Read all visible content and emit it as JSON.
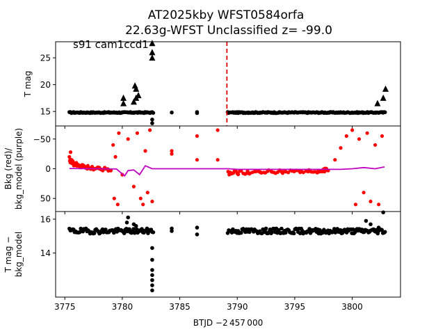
{
  "figure": {
    "title_line1": "AT2025kby  WFST0584orfa",
    "title_line2": "22.63g-WFST Unclassified z= -99.0",
    "annotation": "s91 cam1ccd1",
    "xlabel": "BTJD −2 457 000"
  },
  "colors": {
    "points": "#000000",
    "bkg": "#ff0000",
    "model": "#c000c0",
    "marker_line": "#dd0000"
  },
  "chart_data": [
    {
      "name": "top",
      "type": "scatter",
      "ylabel": "T mag",
      "xlim": [
        3774.2,
        3804.2
      ],
      "ylim": [
        28,
        12.3
      ],
      "yticks": [
        15,
        20,
        25
      ],
      "inverted_y": true,
      "vline_x": 3789.1,
      "series": [
        {
          "kind": "dots",
          "points": [
            [
              3775.5,
              14.8
            ],
            [
              3776,
              14.8
            ],
            [
              3776.5,
              14.8
            ],
            [
              3777,
              14.8
            ],
            [
              3777.5,
              14.8
            ],
            [
              3778,
              14.8
            ],
            [
              3778.5,
              14.8
            ],
            [
              3779,
              14.8
            ],
            [
              3779.5,
              14.8
            ],
            [
              3780,
              14.8
            ],
            [
              3780.5,
              14.8
            ],
            [
              3781,
              14.8
            ],
            [
              3781.5,
              14.8
            ],
            [
              3782,
              14.8
            ],
            [
              3782.5,
              14.8
            ],
            [
              3782.6,
              14.8
            ],
            [
              3782.6,
              13.5
            ],
            [
              3782.6,
              12.8
            ],
            [
              3784.3,
              14.8
            ],
            [
              3786.5,
              14.7
            ],
            [
              3786.5,
              14.9
            ],
            [
              3789.2,
              14.8
            ],
            [
              3790,
              14.8
            ],
            [
              3791,
              14.8
            ],
            [
              3792,
              14.8
            ],
            [
              3793,
              14.8
            ],
            [
              3794,
              14.8
            ],
            [
              3795,
              14.8
            ],
            [
              3796,
              14.8
            ],
            [
              3797,
              14.8
            ],
            [
              3798,
              14.8
            ],
            [
              3799,
              14.8
            ],
            [
              3800,
              14.8
            ],
            [
              3801,
              14.8
            ],
            [
              3802,
              14.8
            ],
            [
              3802.7,
              14.8
            ]
          ]
        },
        {
          "kind": "triangles",
          "points": [
            [
              3780.1,
              16.5
            ],
            [
              3780.1,
              17.5
            ],
            [
              3781,
              16.8
            ],
            [
              3781.2,
              17.5
            ],
            [
              3781.4,
              18
            ],
            [
              3781.2,
              19.2
            ],
            [
              3781.1,
              19.8
            ],
            [
              3782.6,
              25.0
            ],
            [
              3782.6,
              26.0
            ],
            [
              3782.6,
              27.7
            ],
            [
              3802.2,
              16.5
            ],
            [
              3802.7,
              17.5
            ],
            [
              3802.9,
              19.2
            ]
          ]
        }
      ],
      "band_x": [
        3775.4,
        3802.9
      ],
      "band_gaps": [
        [
          3782.7,
          3789.1
        ]
      ],
      "band_y": 14.8
    },
    {
      "name": "middle",
      "type": "scatter",
      "ylabel_line1": "Bkg (red)/",
      "ylabel_line2": "bkg_model (purple)",
      "xlim": [
        3774.2,
        3804.2
      ],
      "ylim": [
        -72,
        72
      ],
      "yticks": [
        -50,
        0,
        50
      ],
      "bkg_points": [
        [
          3775.4,
          -20
        ],
        [
          3775.5,
          -28
        ],
        [
          3775.6,
          -15
        ],
        [
          3776,
          -10
        ],
        [
          3777,
          -5
        ],
        [
          3778,
          -2
        ],
        [
          3779,
          3
        ],
        [
          3779.2,
          -40
        ],
        [
          3779.3,
          50
        ],
        [
          3779.4,
          -20
        ],
        [
          3779.6,
          60
        ],
        [
          3779.7,
          -60
        ],
        [
          3780,
          10
        ],
        [
          3780.5,
          -50
        ],
        [
          3781,
          30
        ],
        [
          3781.3,
          -60
        ],
        [
          3781.6,
          50
        ],
        [
          3781.8,
          60
        ],
        [
          3782,
          -30
        ],
        [
          3782.2,
          40
        ],
        [
          3782.4,
          -65
        ],
        [
          3782.6,
          55
        ],
        [
          3784.3,
          -25
        ],
        [
          3784.3,
          -30
        ],
        [
          3786.5,
          -15
        ],
        [
          3786.5,
          -55
        ],
        [
          3788.3,
          -15
        ],
        [
          3788.3,
          -65
        ],
        [
          3789.3,
          10
        ],
        [
          3790,
          8
        ],
        [
          3792,
          6
        ],
        [
          3794,
          5
        ],
        [
          3796,
          4
        ],
        [
          3797.5,
          2
        ],
        [
          3798.5,
          -15
        ],
        [
          3799,
          -35
        ],
        [
          3799.5,
          -55
        ],
        [
          3800,
          -65
        ],
        [
          3800.3,
          60
        ],
        [
          3800.6,
          -50
        ],
        [
          3801,
          40
        ],
        [
          3801.3,
          -60
        ],
        [
          3801.6,
          55
        ],
        [
          3802,
          -40
        ],
        [
          3802.3,
          60
        ],
        [
          3802.6,
          -55
        ]
      ],
      "model_line": [
        [
          3775.4,
          -0.5
        ],
        [
          3778,
          0
        ],
        [
          3779.5,
          0.5
        ],
        [
          3780.2,
          12
        ],
        [
          3780.5,
          3
        ],
        [
          3781,
          2
        ],
        [
          3781.5,
          10
        ],
        [
          3782,
          -5
        ],
        [
          3782.6,
          0
        ],
        [
          3789.2,
          0
        ],
        [
          3790,
          1
        ],
        [
          3795,
          1
        ],
        [
          3799,
          1
        ],
        [
          3800,
          0
        ],
        [
          3801,
          -2
        ],
        [
          3802,
          0
        ],
        [
          3802.8,
          -3
        ]
      ],
      "bands": [
        [
          [
            3775.4,
            -15
          ],
          [
            3775.8,
            -8
          ],
          [
            3776.5,
            -4
          ],
          [
            3777.5,
            -1
          ],
          [
            3779,
            2
          ]
        ],
        [
          [
            3789.2,
            7
          ],
          [
            3791,
            6
          ],
          [
            3793,
            5
          ],
          [
            3795,
            5
          ],
          [
            3797,
            4
          ],
          [
            3798,
            1
          ]
        ]
      ]
    },
    {
      "name": "bottom",
      "type": "scatter",
      "ylabel_line1": "T mag −",
      "ylabel_line2": "bkg_model",
      "xlim": [
        3774.2,
        3804.2
      ],
      "ylim": [
        16.45,
        11.4
      ],
      "yticks": [
        14,
        16
      ],
      "inverted_y": true,
      "band_y": 15.3,
      "band_x": [
        3775.4,
        3802.9
      ],
      "band_gaps": [
        [
          3782.7,
          3789.1
        ]
      ],
      "points": [
        [
          3780.4,
          15.8
        ],
        [
          3780.5,
          16.1
        ],
        [
          3781,
          15.7
        ],
        [
          3781.2,
          15.6
        ],
        [
          3782.6,
          11.8
        ],
        [
          3782.6,
          12.1
        ],
        [
          3782.6,
          12.4
        ],
        [
          3782.6,
          12.7
        ],
        [
          3782.6,
          13.0
        ],
        [
          3782.6,
          13.6
        ],
        [
          3782.6,
          14.3
        ],
        [
          3784.3,
          15.3
        ],
        [
          3784.3,
          15.45
        ],
        [
          3786.5,
          15.1
        ],
        [
          3786.5,
          15.5
        ],
        [
          3801.2,
          15.9
        ],
        [
          3801.6,
          15.7
        ],
        [
          3802.3,
          15.5
        ],
        [
          3802.7,
          16.4
        ]
      ]
    }
  ],
  "xticks": [
    3775,
    3780,
    3785,
    3790,
    3795,
    3800
  ]
}
